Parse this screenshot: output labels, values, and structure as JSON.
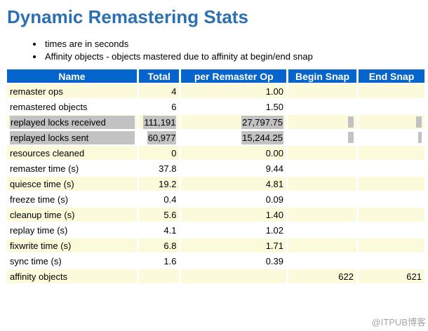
{
  "page": {
    "title": "Dynamic Remastering Stats",
    "notes": [
      "times are in seconds",
      "Affinity objects - objects mastered due to affinity at begin/end snap"
    ],
    "watermark": "@ITPUB博客"
  },
  "table": {
    "columns": [
      "Name",
      "Total",
      "per Remaster Op",
      "Begin Snap",
      "End Snap"
    ],
    "rows": [
      {
        "name": "remaster ops",
        "total": "4",
        "per_op": "1.00",
        "begin_snap": "",
        "end_snap": "",
        "selected": false
      },
      {
        "name": "remastered objects",
        "total": "6",
        "per_op": "1.50",
        "begin_snap": "",
        "end_snap": "",
        "selected": false
      },
      {
        "name": "replayed locks received",
        "total": "111,191",
        "per_op": "27,797.75",
        "begin_snap": "",
        "end_snap": "",
        "selected": true
      },
      {
        "name": "replayed locks sent",
        "total": "60,977",
        "per_op": "15,244.25",
        "begin_snap": "",
        "end_snap": "",
        "selected": true
      },
      {
        "name": "resources cleaned",
        "total": "0",
        "per_op": "0.00",
        "begin_snap": "",
        "end_snap": "",
        "selected": false
      },
      {
        "name": "remaster time (s)",
        "total": "37.8",
        "per_op": "9.44",
        "begin_snap": "",
        "end_snap": "",
        "selected": false
      },
      {
        "name": "quiesce time (s)",
        "total": "19.2",
        "per_op": "4.81",
        "begin_snap": "",
        "end_snap": "",
        "selected": false
      },
      {
        "name": "freeze time (s)",
        "total": "0.4",
        "per_op": "0.09",
        "begin_snap": "",
        "end_snap": "",
        "selected": false
      },
      {
        "name": "cleanup time (s)",
        "total": "5.6",
        "per_op": "1.40",
        "begin_snap": "",
        "end_snap": "",
        "selected": false
      },
      {
        "name": "replay time (s)",
        "total": "4.1",
        "per_op": "1.02",
        "begin_snap": "",
        "end_snap": "",
        "selected": false
      },
      {
        "name": "fixwrite time (s)",
        "total": "6.8",
        "per_op": "1.71",
        "begin_snap": "",
        "end_snap": "",
        "selected": false
      },
      {
        "name": "sync time (s)",
        "total": "1.6",
        "per_op": "0.39",
        "begin_snap": "",
        "end_snap": "",
        "selected": false
      },
      {
        "name": "affinity objects",
        "total": "",
        "per_op": "",
        "begin_snap": "622",
        "end_snap": "621",
        "selected": false
      }
    ]
  },
  "colors": {
    "title_text": "#2b70b2",
    "header_bg": "#0665cc",
    "header_text": "#fffff0",
    "row_alt_bg": "#fbfbdc",
    "selection_bg": "#c2c2c2",
    "watermark_text": "#969696"
  }
}
